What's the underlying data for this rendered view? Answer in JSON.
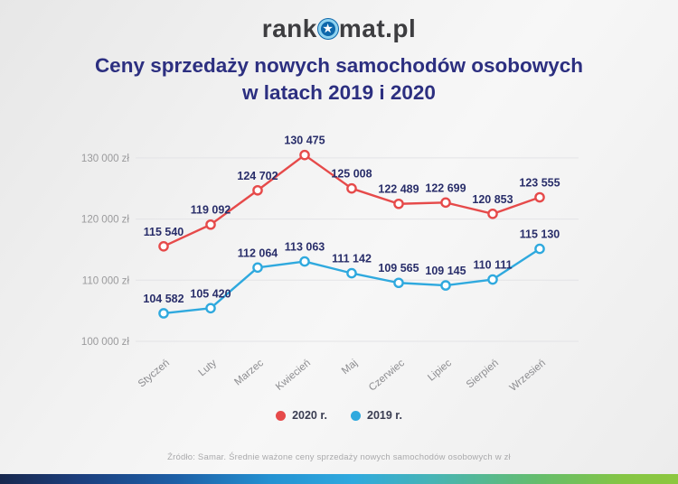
{
  "header": {
    "logo_prefix": "rank",
    "logo_suffix": "mat.pl",
    "star_icon": "star-in-circle"
  },
  "title": {
    "line1": "Ceny sprzedaży nowych samochodów osobowych",
    "line2": "w latach 2019 i 2020"
  },
  "chart_data": {
    "type": "line",
    "title": "Ceny sprzedaży nowych samochodów osobowych w latach 2019 i 2020",
    "categories": [
      "Styczeń",
      "Luty",
      "Marzec",
      "Kwiecień",
      "Maj",
      "Czerwiec",
      "Lipiec",
      "Sierpień",
      "Wrzesień"
    ],
    "series": [
      {
        "name": "2020 r.",
        "color": "#e64a4a",
        "values": [
          115540,
          119092,
          124702,
          130475,
          125008,
          122489,
          122699,
          120853,
          123555
        ]
      },
      {
        "name": "2019 r.",
        "color": "#2fa9de",
        "values": [
          104582,
          105420,
          112064,
          113063,
          111142,
          109565,
          109145,
          110111,
          115130
        ]
      }
    ],
    "y_ticks": [
      100000,
      110000,
      120000,
      130000
    ],
    "y_tick_suffix": " zł",
    "ylim": [
      98500,
      134000
    ],
    "grid": true,
    "data_labels": true,
    "legend_position": "bottom"
  },
  "footer": {
    "source": "Źródło: Samar. Średnie ważone ceny sprzedaży nowych samochodów osobowych w zł"
  },
  "colors": {
    "accent_red": "#e64a4a",
    "accent_blue": "#2fa9de",
    "title_navy": "#2c2f80",
    "label_navy": "#292e6a",
    "logo_circle_blue": "#0d67ab",
    "logo_ring_blue": "#8fd2ef",
    "bottom_bar_gradient": [
      "#18284e",
      "#1d5fa6",
      "#2492d2",
      "#2fa9de",
      "#66bd6a",
      "#8dc73f"
    ]
  }
}
